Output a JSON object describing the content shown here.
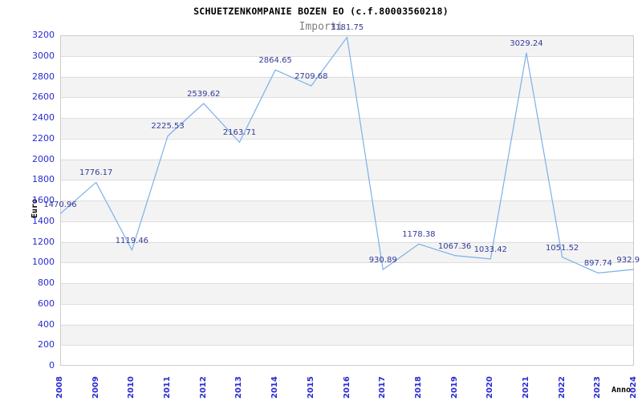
{
  "title": "SCHUETZENKOMPANIE BOZEN EO (c.f.80003560218)",
  "subtitle": "Importi",
  "chart_data": {
    "type": "line",
    "x": [
      2008,
      2009,
      2010,
      2011,
      2012,
      2013,
      2014,
      2015,
      2016,
      2017,
      2018,
      2019,
      2020,
      2021,
      2022,
      2023,
      2024
    ],
    "series": [
      {
        "name": "Importi",
        "values": [
          1470.96,
          1776.17,
          1119.46,
          2225.53,
          2539.62,
          2163.71,
          2864.65,
          2709.68,
          3181.75,
          930.89,
          1178.38,
          1067.36,
          1033.42,
          3029.24,
          1051.52,
          897.74,
          932.9
        ]
      }
    ],
    "point_labels": [
      "1470.96",
      "1776.17",
      "1119.46",
      "2225.53",
      "2539.62",
      "2163.71",
      "2864.65",
      "2709.68",
      "3181.75",
      "930.89",
      "1178.38",
      "1067.36",
      "1033.42",
      "3029.24",
      "1051.52",
      "897.74",
      "932.9"
    ],
    "xlabel": "Anno",
    "ylabel": "Euro",
    "ylim": [
      0,
      3200
    ],
    "ytick_step": 200,
    "grid": true,
    "legend": "none",
    "colors": {
      "line": "#7cb0e8",
      "point_label": "#333a99",
      "tick_label": "#2a2ad0",
      "band": "#f3f3f3",
      "gridline": "#dedede",
      "plot_border": "#cccccc",
      "title": "#000000",
      "subtitle": "#7f7f7f"
    }
  }
}
